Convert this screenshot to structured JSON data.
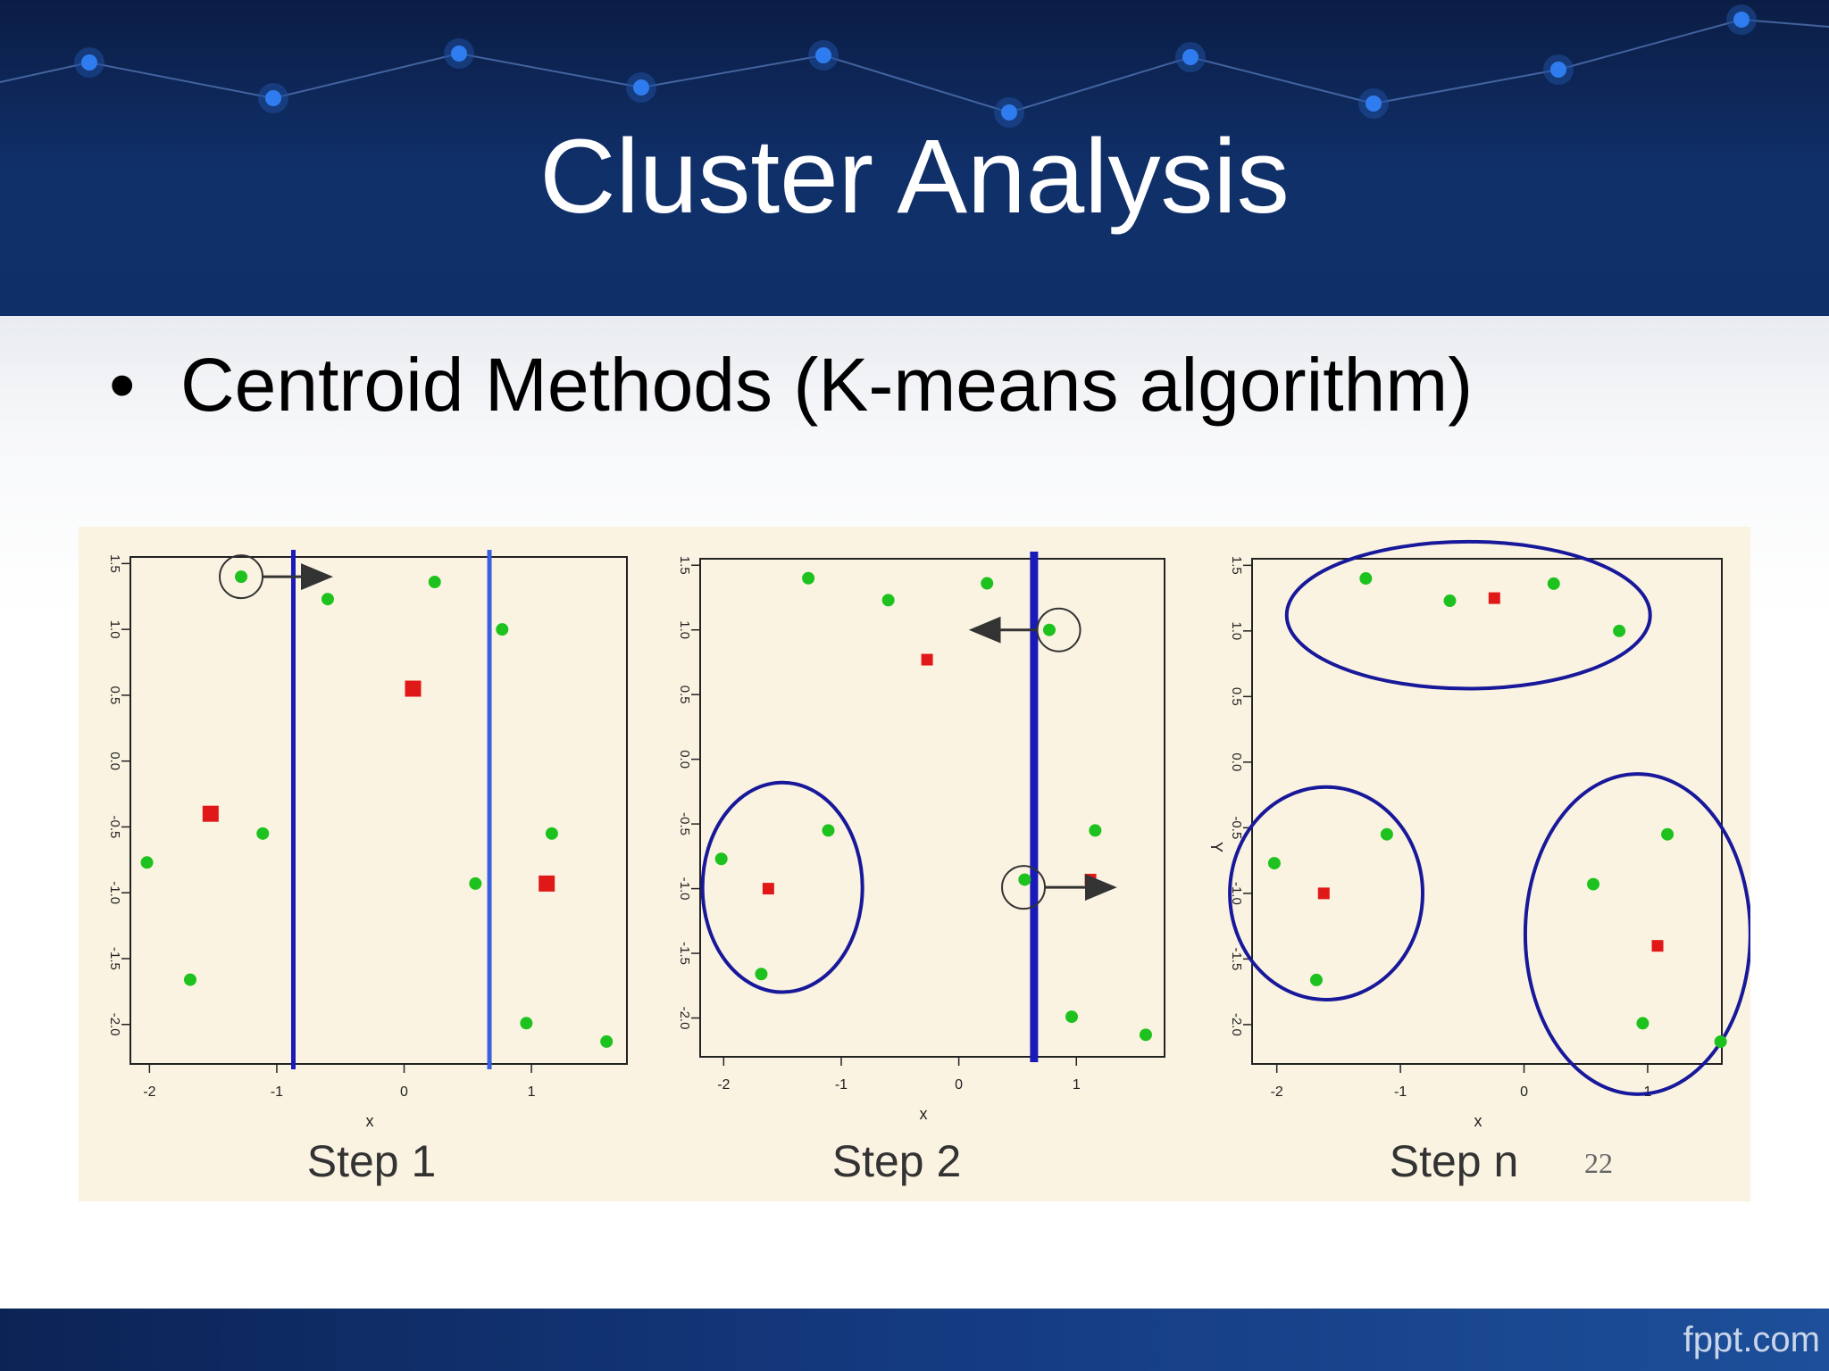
{
  "slide": {
    "title": "Cluster Analysis",
    "bullet": "Centroid Methods (K-means algorithm)",
    "brand": "fppt.com",
    "page_number": "22"
  },
  "colors": {
    "header_dark": "#0b1d45",
    "header_mid": "#10306a",
    "node_blue": "#2f7cf0",
    "figure_bg": "#fbf3e2",
    "point_green": "#1ec21e",
    "centroid_red": "#e01818",
    "boundary_blue": "#1a1ab8",
    "cluster_ring": "#18189a"
  },
  "chart_data": [
    {
      "type": "scatter",
      "caption": "Step 1",
      "xlabel": "x",
      "ylabel": "",
      "xlim": [
        -2.15,
        1.75
      ],
      "ylim": [
        -2.3,
        1.55
      ],
      "xticks": [
        "-2",
        "-1",
        "0",
        "1"
      ],
      "yticks": [
        "1.5",
        "1.0",
        "0.5",
        "0.0",
        "-0.5",
        "-1.0",
        "-1.5",
        "-2.0"
      ],
      "points": [
        [
          -1.28,
          1.4
        ],
        [
          -0.6,
          1.23
        ],
        [
          0.24,
          1.36
        ],
        [
          0.77,
          1.0
        ],
        [
          -1.11,
          -0.55
        ],
        [
          -2.02,
          -0.77
        ],
        [
          0.56,
          -0.93
        ],
        [
          1.16,
          -0.55
        ],
        [
          -1.68,
          -1.66
        ],
        [
          0.96,
          -1.99
        ],
        [
          1.59,
          -2.13
        ]
      ],
      "centroids": [
        [
          -1.52,
          -0.4
        ],
        [
          0.07,
          0.55
        ],
        [
          1.12,
          -0.93
        ]
      ],
      "boundaries_x": [
        -0.87,
        0.67
      ],
      "highlight": {
        "point": [
          -1.28,
          1.4
        ],
        "arrow_to_x": -0.6
      }
    },
    {
      "type": "scatter",
      "caption": "Step 2",
      "xlabel": "x",
      "ylabel": "",
      "xlim": [
        -2.2,
        1.75
      ],
      "ylim": [
        -2.3,
        1.55
      ],
      "xticks": [
        "-2",
        "-1",
        "0",
        "1"
      ],
      "yticks": [
        "1.5",
        "1.0",
        "0.5",
        "0.0",
        "-0.5",
        "-1.0",
        "-1.5",
        "-2.0"
      ],
      "points": [
        [
          -1.28,
          1.4
        ],
        [
          -0.6,
          1.23
        ],
        [
          0.24,
          1.36
        ],
        [
          0.77,
          1.0
        ],
        [
          -1.11,
          -0.55
        ],
        [
          -2.02,
          -0.77
        ],
        [
          0.56,
          -0.93
        ],
        [
          1.16,
          -0.55
        ],
        [
          -1.68,
          -1.66
        ],
        [
          0.96,
          -1.99
        ],
        [
          1.59,
          -2.13
        ]
      ],
      "centroids": [
        [
          -1.62,
          -1.0
        ],
        [
          -0.27,
          0.77
        ],
        [
          1.12,
          -0.93
        ]
      ],
      "boundaries_x": [
        0.64
      ],
      "clusters": [
        {
          "cx": -1.5,
          "cy": -0.99,
          "rx": 0.68,
          "ry": 0.81
        }
      ],
      "highlights": [
        {
          "point": [
            0.85,
            1.0
          ],
          "arrow_to_x": 0.13
        },
        {
          "point": [
            0.55,
            -0.99
          ],
          "arrow_to_x": 1.3
        }
      ]
    },
    {
      "type": "scatter",
      "caption": "Step n",
      "xlabel": "x",
      "ylabel": "Y",
      "xlim": [
        -2.2,
        1.6
      ],
      "ylim": [
        -2.3,
        1.55
      ],
      "xticks": [
        "-2",
        "-1",
        "0",
        "1"
      ],
      "yticks": [
        "1.5",
        "1.0",
        "0.5",
        "0.0",
        "-0.5",
        "-1.0",
        "-1.5",
        "-2.0"
      ],
      "points": [
        [
          -1.28,
          1.4
        ],
        [
          -0.6,
          1.23
        ],
        [
          0.24,
          1.36
        ],
        [
          0.77,
          1.0
        ],
        [
          -1.11,
          -0.55
        ],
        [
          -2.02,
          -0.77
        ],
        [
          0.56,
          -0.93
        ],
        [
          1.16,
          -0.55
        ],
        [
          -1.68,
          -1.66
        ],
        [
          0.96,
          -1.99
        ],
        [
          1.59,
          -2.13
        ]
      ],
      "centroids": [
        [
          -0.24,
          1.25
        ],
        [
          -1.62,
          -1.0
        ],
        [
          1.08,
          -1.4
        ]
      ],
      "clusters": [
        {
          "cx": -0.45,
          "cy": 1.12,
          "rx": 1.47,
          "ry": 0.56
        },
        {
          "cx": -1.6,
          "cy": -1.0,
          "rx": 0.78,
          "ry": 0.81
        },
        {
          "cx": 0.92,
          "cy": -1.31,
          "rx": 0.91,
          "ry": 1.22
        }
      ]
    }
  ]
}
